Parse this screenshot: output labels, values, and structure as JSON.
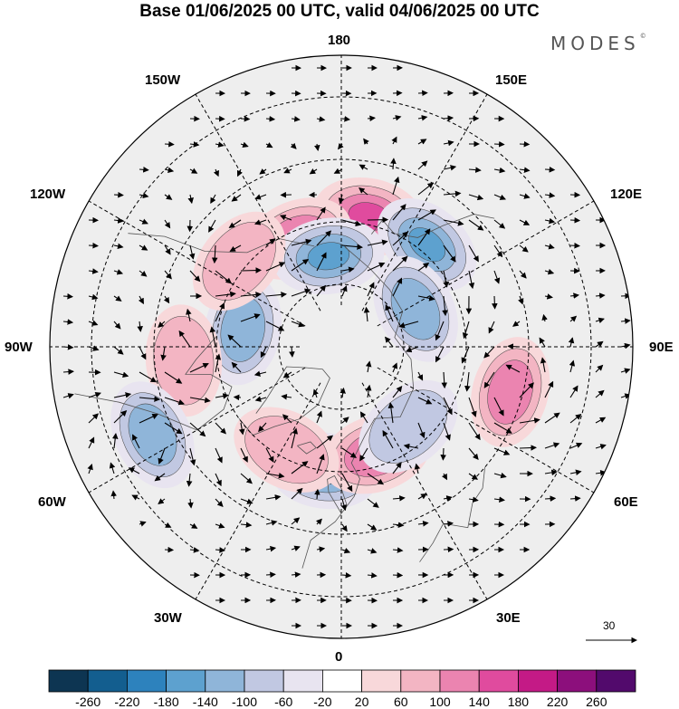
{
  "title": "Base 01/06/2025 00 UTC, valid 04/06/2025 00 UTC",
  "brand": "MODES",
  "brand_mark": "©",
  "longitude_labels": {
    "top": "180",
    "bottom": "0",
    "left": "90W",
    "right": "90E",
    "upper_left_1": "150W",
    "upper_left_2": "120W",
    "upper_right_1": "150E",
    "upper_right_2": "120E",
    "lower_left_1": "60W",
    "lower_left_2": "30W",
    "lower_right_1": "60E",
    "lower_right_2": "30E"
  },
  "vector_scale_label": "30",
  "colorbar": {
    "ticks": [
      "-260",
      "-220",
      "-180",
      "-140",
      "-100",
      "-60",
      "-20",
      "20",
      "60",
      "100",
      "140",
      "180",
      "220",
      "260"
    ],
    "colors": [
      "#0d3552",
      "#135e8f",
      "#2d82bd",
      "#5da1cf",
      "#8fb5d9",
      "#c1c8e2",
      "#e8e4f0",
      "#ffffff",
      "#f8d8da",
      "#f3b5c3",
      "#eb84b0",
      "#e04b9e",
      "#c41a86",
      "#8c0f7c",
      "#520a6c"
    ]
  },
  "anomaly_cells": [
    {
      "type": "positive",
      "level": 3,
      "lon": 168,
      "lat": 58
    },
    {
      "type": "positive",
      "level": 2,
      "lon": -158,
      "lat": 62
    },
    {
      "type": "negative",
      "level": 3,
      "lon": -172,
      "lat": 68
    },
    {
      "type": "negative",
      "level": 3,
      "lon": 140,
      "lat": 58
    },
    {
      "type": "negative",
      "level": 2,
      "lon": -100,
      "lat": 66
    },
    {
      "type": "negative",
      "level": 2,
      "lon": 117,
      "lat": 70
    },
    {
      "type": "positive",
      "level": 2,
      "lon": 75,
      "lat": 48
    },
    {
      "type": "positive",
      "level": 1,
      "lon": -85,
      "lat": 52
    },
    {
      "type": "negative",
      "level": 2,
      "lon": -65,
      "lat": 40
    },
    {
      "type": "negative",
      "level": 3,
      "lon": -8,
      "lat": 60
    },
    {
      "type": "positive",
      "level": 2,
      "lon": 18,
      "lat": 63
    },
    {
      "type": "negative",
      "level": 1,
      "lon": 40,
      "lat": 65
    },
    {
      "type": "positive",
      "level": 1,
      "lon": -28,
      "lat": 62
    },
    {
      "type": "positive",
      "level": 1,
      "lon": -130,
      "lat": 58
    }
  ]
}
